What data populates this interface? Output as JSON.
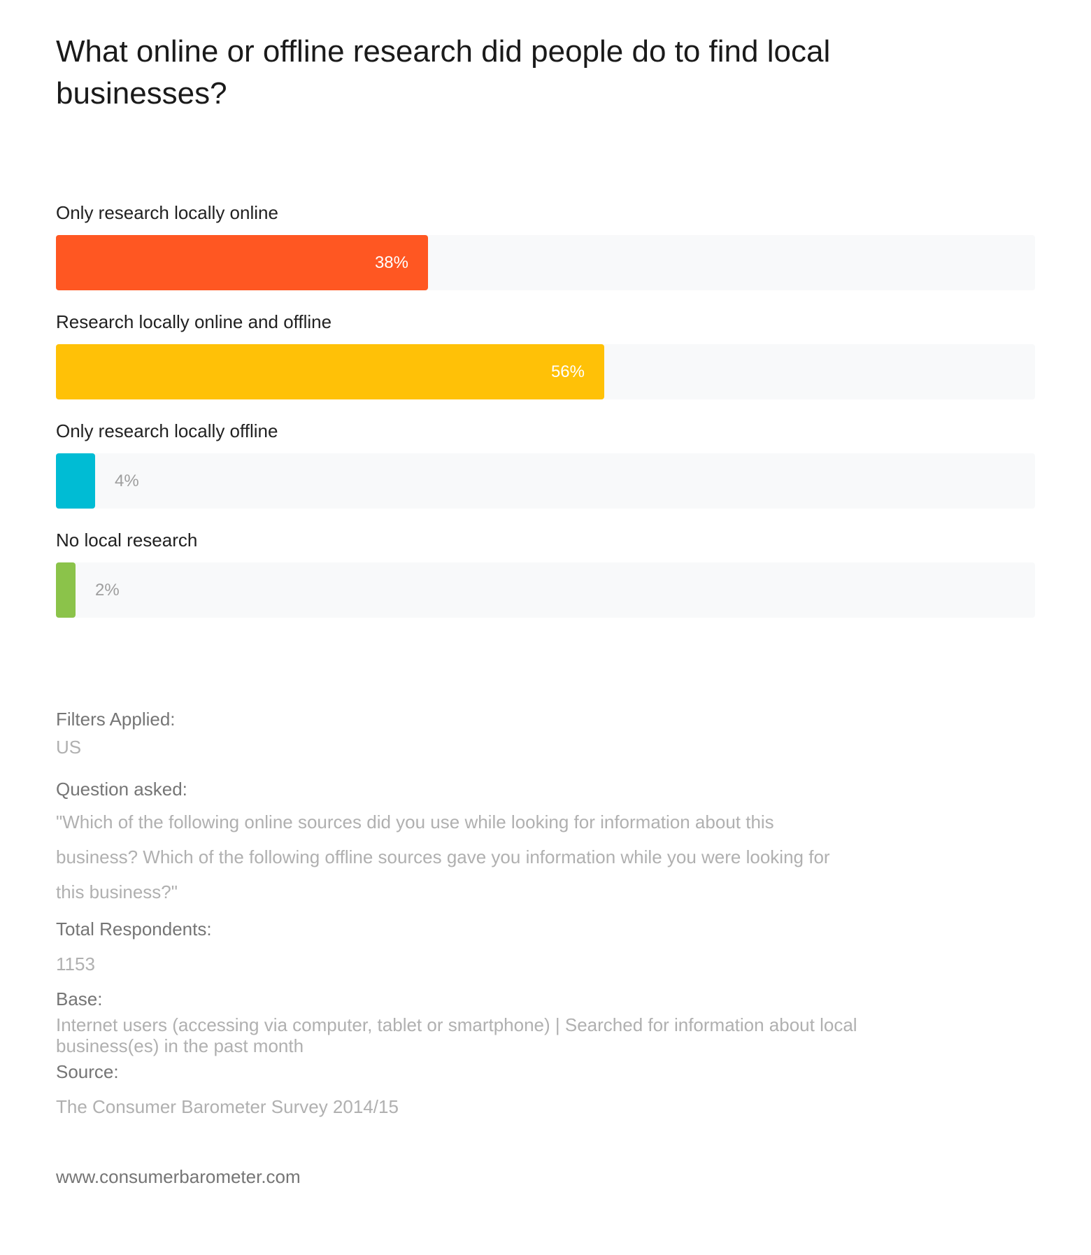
{
  "chart_data": {
    "type": "bar",
    "orientation": "horizontal",
    "title": "What online or offline research did people do to find local businesses?",
    "categories": [
      "Only research locally online",
      "Research locally online and offline",
      "Only research locally offline",
      "No local research"
    ],
    "values": [
      38,
      56,
      4,
      2
    ],
    "value_labels": [
      "38%",
      "56%",
      "4%",
      "2%"
    ],
    "unit": "%",
    "xlim": [
      0,
      100
    ],
    "colors": [
      "#ff5722",
      "#ffc107",
      "#00bcd4",
      "#8bc34a"
    ],
    "track_color": "#f8f9fa",
    "grid": false
  },
  "meta": {
    "filters_label": "Filters Applied:",
    "filters_value": "US",
    "question_label": "Question asked:",
    "question_value": "\"Which of the following online sources did you use while looking for information about this business? Which of the following offline sources gave you information while you were looking for this business?\"",
    "respondents_label": "Total Respondents:",
    "respondents_value": "1153",
    "base_label": "Base:",
    "base_value": "Internet users (accessing via computer, tablet or smartphone) | Searched for information about local business(es) in the past month",
    "source_label": "Source:",
    "source_value": "The Consumer Barometer Survey 2014/15"
  },
  "footer": {
    "url": "www.consumerbarometer.com"
  }
}
